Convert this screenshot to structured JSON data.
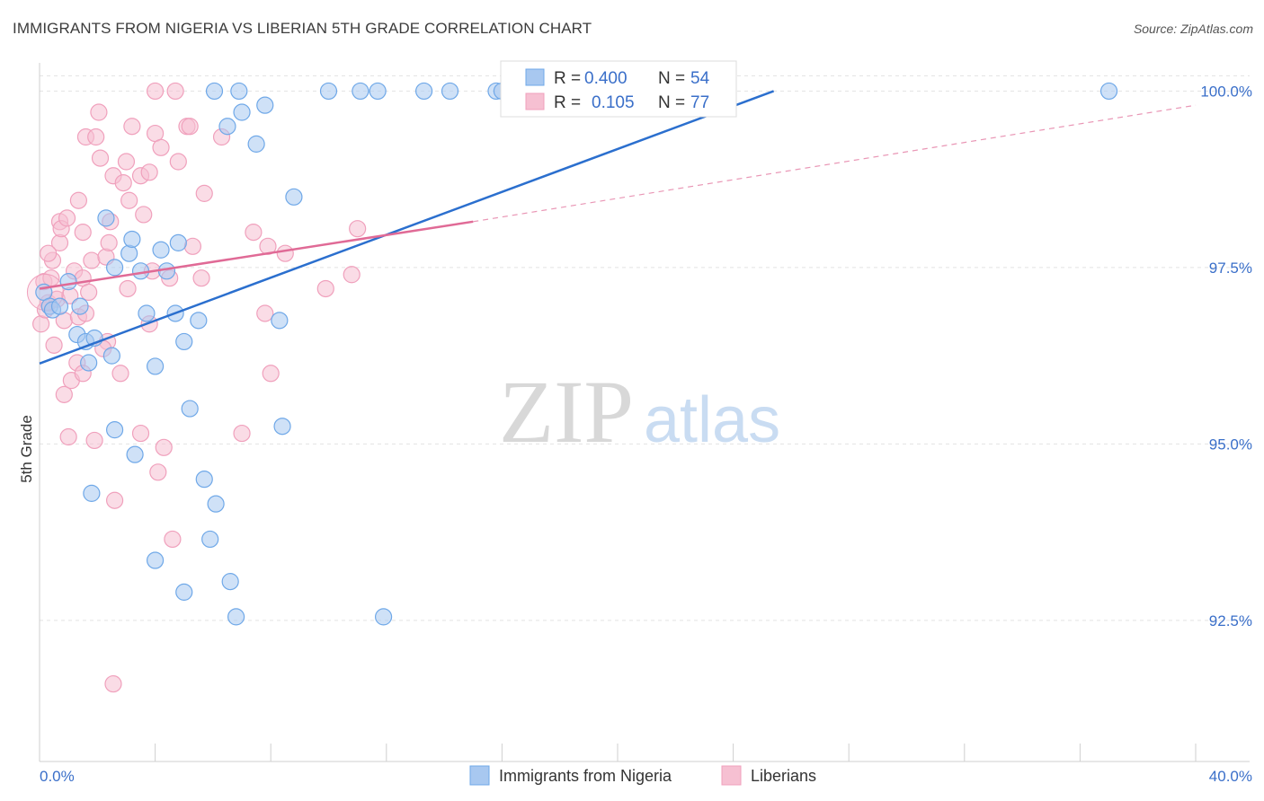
{
  "header": {
    "title": "IMMIGRANTS FROM NIGERIA VS LIBERIAN 5TH GRADE CORRELATION CHART",
    "source": "Source: ZipAtlas.com"
  },
  "watermark": {
    "zip": "ZIP",
    "atlas": "atlas"
  },
  "colors": {
    "blue": "#6fa8e8",
    "blue_fill": "#a8c8f0",
    "blue_line": "#2b6fce",
    "pink": "#f0a0bc",
    "pink_fill": "#f6c0d2",
    "pink_line": "#e06a96",
    "tick_label": "#3a6fc9",
    "grid": "#e2e2e2"
  },
  "legend": {
    "rows": [
      {
        "r_label": "R =",
        "r_value": "0.400",
        "n_label": "N =",
        "n_value": "54"
      },
      {
        "r_label": "R =",
        "r_value": "0.105",
        "n_label": "N =",
        "n_value": "77"
      }
    ]
  },
  "chart_data": {
    "type": "scatter",
    "title": "IMMIGRANTS FROM NIGERIA VS LIBERIAN 5TH GRADE CORRELATION CHART",
    "xlabel": "",
    "ylabel": "5th Grade",
    "xlim": [
      0.0,
      40.0
    ],
    "ylim": [
      90.5,
      100.4
    ],
    "x_tick_labels": [
      "0.0%",
      "40.0%"
    ],
    "y_ticks": [
      92.5,
      95.0,
      97.5,
      100.0
    ],
    "y_tick_labels": [
      "92.5%",
      "95.0%",
      "97.5%",
      "100.0%"
    ],
    "grid": true,
    "legend_position": "top-center",
    "series": [
      {
        "name": "Immigrants from Nigeria",
        "color": "blue",
        "r": 0.4,
        "n": 54,
        "trend": {
          "x": [
            0.0,
            25.4
          ],
          "y": [
            96.14,
            100.0
          ]
        },
        "points": [
          [
            0.15,
            97.15
          ],
          [
            0.35,
            96.95
          ],
          [
            0.45,
            96.9
          ],
          [
            0.7,
            96.95
          ],
          [
            1.0,
            97.3
          ],
          [
            1.3,
            96.55
          ],
          [
            1.4,
            96.95
          ],
          [
            1.6,
            96.45
          ],
          [
            1.7,
            96.15
          ],
          [
            1.9,
            96.5
          ],
          [
            2.3,
            98.2
          ],
          [
            2.5,
            96.25
          ],
          [
            2.6,
            95.2
          ],
          [
            2.6,
            97.5
          ],
          [
            3.1,
            97.7
          ],
          [
            3.2,
            97.9
          ],
          [
            3.3,
            94.85
          ],
          [
            3.5,
            97.45
          ],
          [
            3.7,
            96.85
          ],
          [
            4.0,
            93.35
          ],
          [
            4.0,
            96.1
          ],
          [
            4.2,
            97.75
          ],
          [
            4.4,
            97.45
          ],
          [
            4.7,
            96.85
          ],
          [
            4.8,
            97.85
          ],
          [
            5.0,
            96.45
          ],
          [
            5.2,
            95.5
          ],
          [
            5.5,
            96.75
          ],
          [
            5.7,
            94.5
          ],
          [
            5.9,
            93.65
          ],
          [
            6.1,
            94.15
          ],
          [
            6.5,
            99.5
          ],
          [
            6.6,
            93.05
          ],
          [
            6.8,
            92.55
          ],
          [
            7.0,
            99.7
          ],
          [
            7.5,
            99.25
          ],
          [
            7.8,
            99.8
          ],
          [
            8.3,
            96.75
          ],
          [
            8.4,
            95.25
          ],
          [
            8.8,
            98.5
          ],
          [
            5.0,
            92.9
          ],
          [
            10.0,
            100.0
          ],
          [
            11.1,
            100.0
          ],
          [
            11.7,
            100.0
          ],
          [
            11.9,
            92.55
          ],
          [
            13.3,
            100.0
          ],
          [
            14.2,
            100.0
          ],
          [
            15.8,
            100.0
          ],
          [
            16.7,
            100.0
          ],
          [
            37.0,
            100.0
          ],
          [
            1.8,
            94.3
          ],
          [
            6.05,
            100.0
          ],
          [
            6.9,
            100.0
          ],
          [
            16.0,
            100.0
          ]
        ]
      },
      {
        "name": "Liberians",
        "color": "pink",
        "r": 0.105,
        "n": 77,
        "trend": {
          "x": [
            0.0,
            15.0
          ],
          "y": [
            97.2,
            98.15
          ]
        },
        "trend_extended": {
          "x": [
            15.0,
            40.0
          ],
          "y": [
            98.15,
            99.8
          ]
        },
        "points": [
          [
            0.05,
            96.7
          ],
          [
            0.15,
            97.3
          ],
          [
            0.2,
            96.9
          ],
          [
            0.3,
            97.0
          ],
          [
            0.45,
            97.6
          ],
          [
            0.5,
            96.4
          ],
          [
            0.6,
            97.05
          ],
          [
            0.7,
            97.85
          ],
          [
            0.7,
            98.15
          ],
          [
            0.75,
            98.05
          ],
          [
            0.85,
            95.7
          ],
          [
            0.85,
            96.75
          ],
          [
            0.95,
            98.2
          ],
          [
            1.0,
            95.1
          ],
          [
            1.05,
            97.1
          ],
          [
            1.1,
            95.9
          ],
          [
            1.2,
            97.45
          ],
          [
            1.3,
            96.15
          ],
          [
            1.35,
            96.8
          ],
          [
            1.35,
            98.45
          ],
          [
            1.5,
            97.35
          ],
          [
            1.5,
            98.0
          ],
          [
            1.5,
            96.0
          ],
          [
            1.6,
            96.85
          ],
          [
            1.6,
            99.35
          ],
          [
            1.8,
            97.6
          ],
          [
            1.9,
            95.05
          ],
          [
            1.95,
            99.35
          ],
          [
            2.05,
            99.7
          ],
          [
            2.1,
            99.05
          ],
          [
            2.3,
            97.65
          ],
          [
            2.35,
            96.45
          ],
          [
            2.4,
            97.85
          ],
          [
            2.45,
            98.15
          ],
          [
            2.55,
            98.8
          ],
          [
            2.55,
            91.6
          ],
          [
            2.6,
            94.2
          ],
          [
            2.8,
            96.0
          ],
          [
            2.9,
            98.7
          ],
          [
            3.0,
            99.0
          ],
          [
            3.05,
            97.2
          ],
          [
            3.1,
            98.45
          ],
          [
            3.2,
            99.5
          ],
          [
            3.5,
            95.15
          ],
          [
            3.5,
            98.8
          ],
          [
            3.6,
            98.25
          ],
          [
            3.8,
            98.85
          ],
          [
            3.9,
            97.45
          ],
          [
            4.0,
            99.4
          ],
          [
            4.1,
            94.6
          ],
          [
            4.2,
            99.2
          ],
          [
            4.3,
            94.95
          ],
          [
            4.5,
            97.35
          ],
          [
            4.6,
            93.65
          ],
          [
            4.8,
            99.0
          ],
          [
            5.1,
            99.5
          ],
          [
            5.3,
            97.8
          ],
          [
            5.6,
            97.35
          ],
          [
            5.7,
            98.55
          ],
          [
            6.3,
            99.35
          ],
          [
            7.0,
            95.15
          ],
          [
            7.4,
            98.0
          ],
          [
            7.8,
            96.85
          ],
          [
            7.9,
            97.8
          ],
          [
            8.0,
            96.0
          ],
          [
            8.5,
            97.7
          ],
          [
            9.9,
            97.2
          ],
          [
            10.8,
            97.4
          ],
          [
            11.0,
            98.05
          ],
          [
            4.0,
            100.0
          ],
          [
            4.7,
            100.0
          ],
          [
            5.2,
            99.5
          ],
          [
            0.3,
            97.7
          ],
          [
            0.4,
            97.35
          ],
          [
            1.7,
            97.15
          ],
          [
            3.8,
            96.7
          ],
          [
            2.2,
            96.35
          ]
        ]
      }
    ]
  },
  "bottom_legend": {
    "items": [
      {
        "label": "Immigrants from Nigeria",
        "color": "blue"
      },
      {
        "label": "Liberians",
        "color": "pink"
      }
    ]
  }
}
